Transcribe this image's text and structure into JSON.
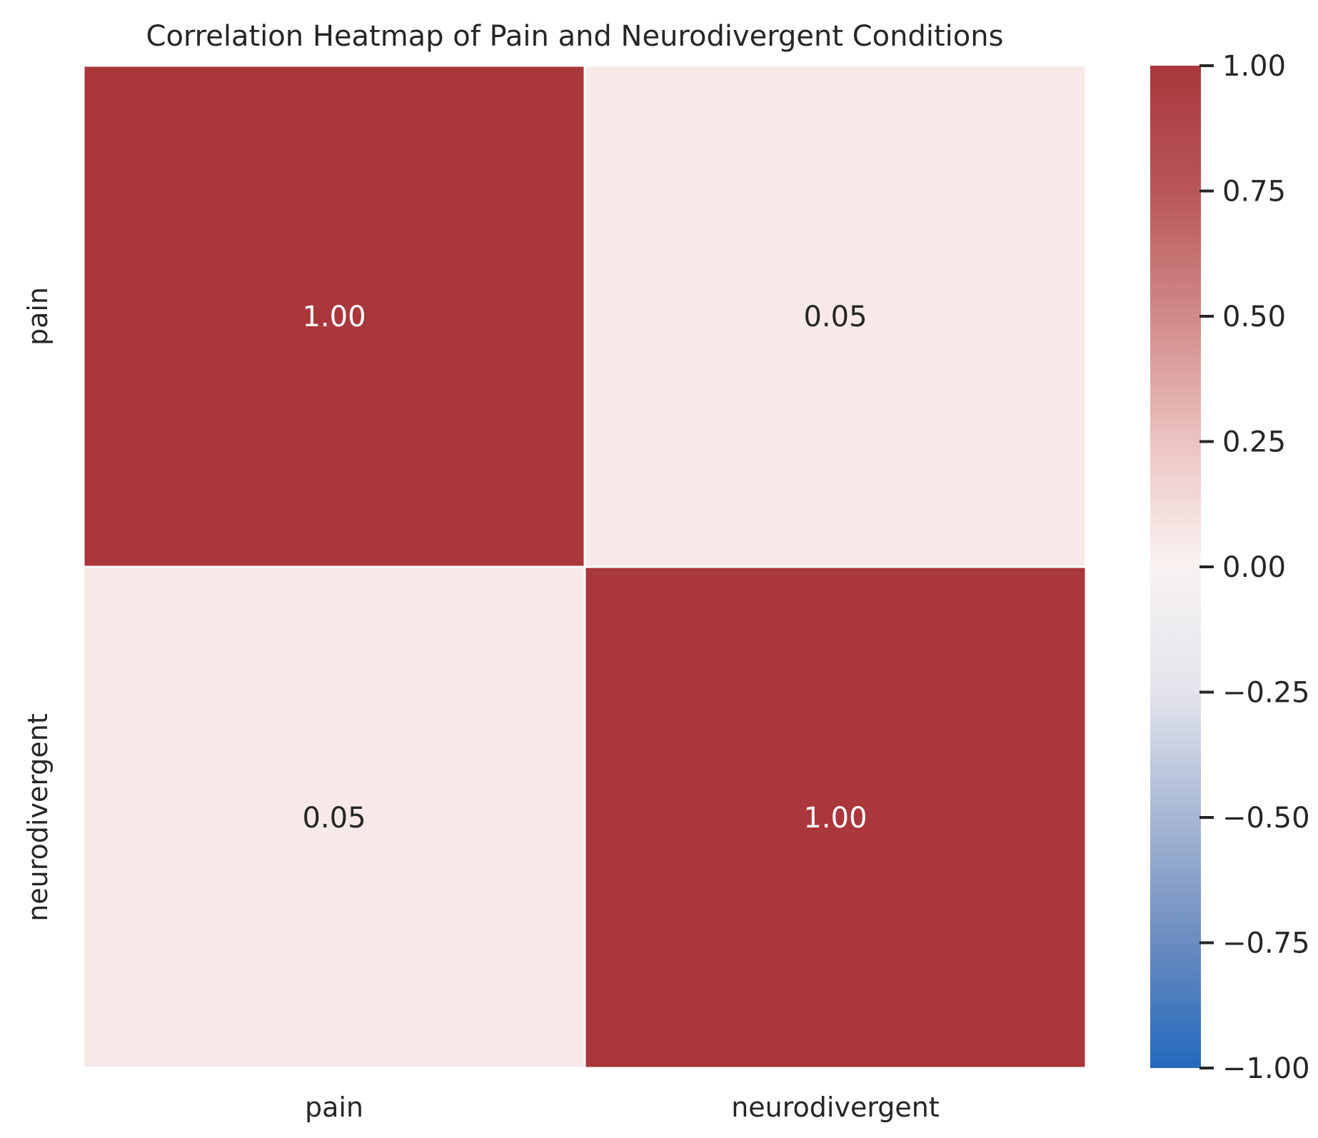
{
  "chart_data": {
    "type": "heatmap",
    "title": "Correlation Heatmap of Pain and Neurodivergent Conditions",
    "x_labels": [
      "pain",
      "neurodivergent"
    ],
    "y_labels": [
      "pain",
      "neurodivergent"
    ],
    "values": [
      [
        1.0,
        0.05
      ],
      [
        0.05,
        1.0
      ]
    ],
    "annotations": [
      [
        "1.00",
        "0.05"
      ],
      [
        "0.05",
        "1.00"
      ]
    ],
    "colorbar": {
      "min": -1.0,
      "max": 1.0,
      "ticks": [
        1.0,
        0.75,
        0.5,
        0.25,
        0.0,
        -0.25,
        -0.5,
        -0.75,
        -1.0
      ],
      "tick_labels": [
        "1.00",
        "0.75",
        "0.50",
        "0.25",
        "0.00",
        "−0.25",
        "−0.50",
        "−0.75",
        "−1.00"
      ],
      "colormap": "vlag",
      "color_stops": [
        "#2369bd",
        "#6a8bc0",
        "#a7b7d3",
        "#e3e4ec",
        "#f8f3f2",
        "#ecc3c1",
        "#d08a88",
        "#b8575a",
        "#a9373b"
      ]
    },
    "grid": false,
    "legend_placement": "right"
  }
}
